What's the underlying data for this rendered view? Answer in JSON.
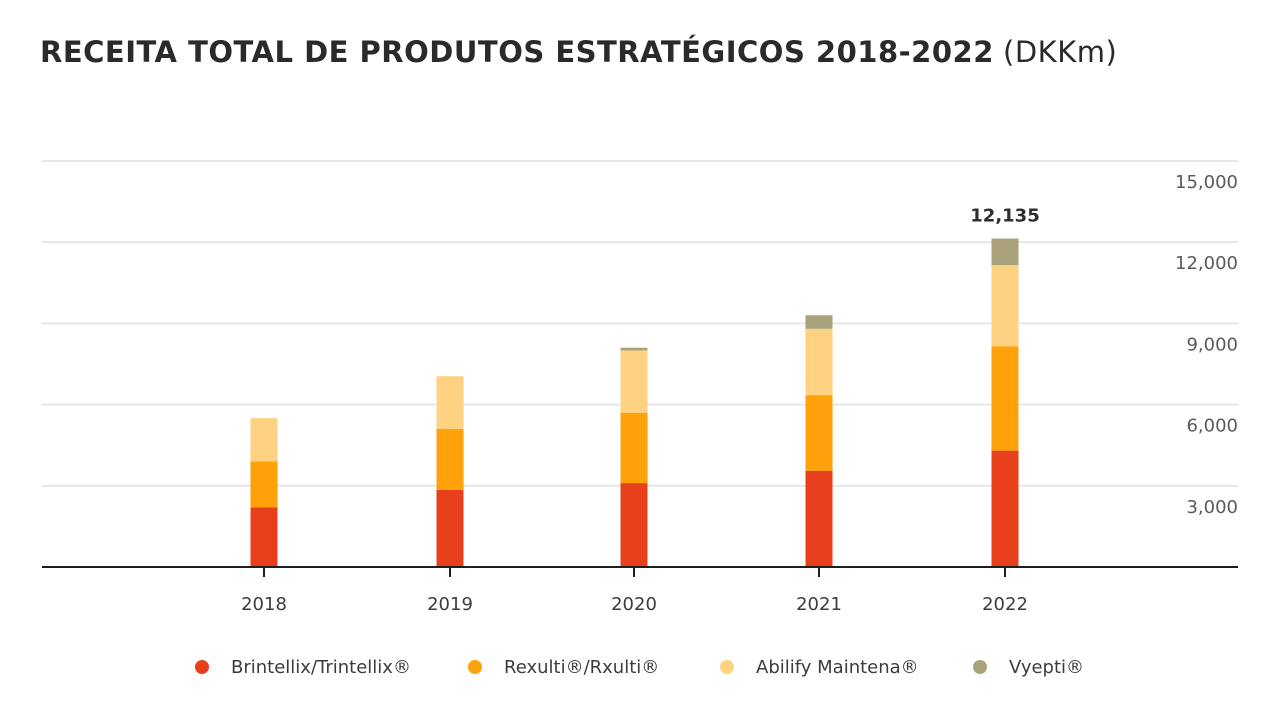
{
  "title": {
    "main": "RECEITA TOTAL DE PRODUTOS ESTRATÉGICOS 2018-2022",
    "unit": "(DKKm)"
  },
  "chart_data": {
    "type": "bar",
    "stacked": true,
    "categories": [
      "2018",
      "2019",
      "2020",
      "2021",
      "2022"
    ],
    "series": [
      {
        "name": "Brintellix/Trintellix®",
        "color": "#e8401c",
        "values": [
          2200,
          2850,
          3100,
          3550,
          4300
        ]
      },
      {
        "name": "Rexulti®/Rxulti®",
        "color": "#ffa10a",
        "values": [
          1700,
          2250,
          2600,
          2800,
          3850
        ]
      },
      {
        "name": "Abilify Maintena®",
        "color": "#ffd281",
        "values": [
          1600,
          1950,
          2300,
          2450,
          3000
        ]
      },
      {
        "name": "Vyepti®",
        "color": "#a9a27b",
        "values": [
          0,
          0,
          100,
          500,
          985
        ]
      }
    ],
    "annotations": [
      {
        "category": "2022",
        "text": "12,135"
      }
    ],
    "y_ticks": [
      3000,
      6000,
      9000,
      12000,
      15000
    ],
    "y_tick_labels": [
      "3,000",
      "6,000",
      "9,000",
      "12,000",
      "15,000"
    ],
    "ylim": [
      0,
      15000
    ],
    "y_axis_side": "right",
    "grid": true,
    "legend_position": "bottom",
    "xlabel": "",
    "ylabel": ""
  }
}
